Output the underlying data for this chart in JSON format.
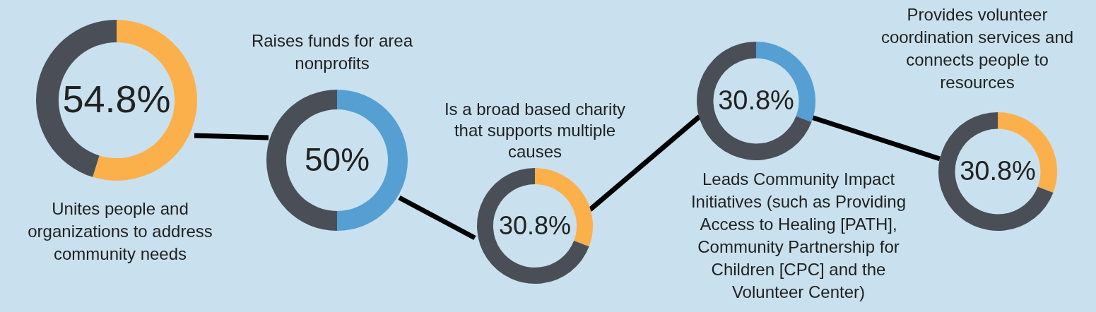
{
  "chart_data": [
    {
      "type": "donut",
      "title": "Unites people and organizations to address community needs",
      "categories": [
        null,
        null
      ],
      "values": [
        54.8,
        45.2
      ],
      "colors": [
        "#fbb04b",
        "#4a4f57"
      ],
      "value_labels": [
        "54.8%",
        null
      ],
      "legend": false
    },
    {
      "type": "donut",
      "title": "Raises funds for area nonprofits",
      "categories": [
        null,
        null
      ],
      "values": [
        50,
        50
      ],
      "colors": [
        "#559fd3",
        "#4a4f57"
      ],
      "value_labels": [
        "50%",
        null
      ],
      "legend": false
    },
    {
      "type": "donut",
      "title": "Is a broad based charity that supports multiple causes",
      "categories": [
        null,
        null
      ],
      "values": [
        30.8,
        69.2
      ],
      "colors": [
        "#fbb04b",
        "#4a4f57"
      ],
      "value_labels": [
        "30.8%",
        null
      ],
      "legend": false
    },
    {
      "type": "donut",
      "title": "Leads Community Impact Initiatives (such as Providing Access to Healing [PATH], Community Partnership for Children [CPC] and the Volunteer Center)",
      "categories": [
        null,
        null
      ],
      "values": [
        30.8,
        69.2
      ],
      "colors": [
        "#559fd3",
        "#4a4f57"
      ],
      "value_labels": [
        "30.8%",
        null
      ],
      "legend": false
    },
    {
      "type": "donut",
      "title": "Provides volunteer coordination services and connects people to resources",
      "categories": [
        null,
        null
      ],
      "values": [
        30.8,
        69.2
      ],
      "colors": [
        "#fbb04b",
        "#4a4f57"
      ],
      "value_labels": [
        "30.8%",
        null
      ],
      "legend": false
    }
  ]
}
